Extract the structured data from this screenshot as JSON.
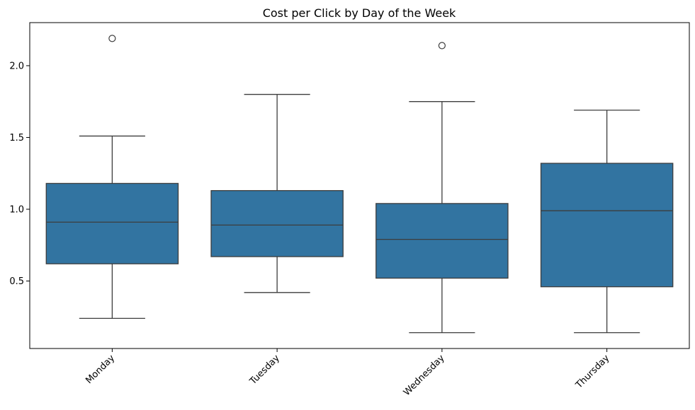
{
  "chart_data": {
    "type": "box",
    "title": "Cost per Click by Day of the Week",
    "xlabel": "",
    "ylabel": "",
    "ylim": [
      0.03,
      2.3
    ],
    "yticks": [
      0.5,
      1.0,
      1.5,
      2.0
    ],
    "ytick_labels": [
      "0.5",
      "1.0",
      "1.5",
      "2.0"
    ],
    "categories": [
      "Monday",
      "Tuesday",
      "Wednesday",
      "Thursday"
    ],
    "boxes": [
      {
        "category": "Monday",
        "whisker_low": 0.24,
        "q1": 0.62,
        "median": 0.91,
        "q3": 1.18,
        "whisker_high": 1.51,
        "outliers": [
          2.19
        ]
      },
      {
        "category": "Tuesday",
        "whisker_low": 0.42,
        "q1": 0.67,
        "median": 0.89,
        "q3": 1.13,
        "whisker_high": 1.8,
        "outliers": []
      },
      {
        "category": "Wednesday",
        "whisker_low": 0.14,
        "q1": 0.52,
        "median": 0.79,
        "q3": 1.04,
        "whisker_high": 1.75,
        "outliers": [
          2.14
        ]
      },
      {
        "category": "Thursday",
        "whisker_low": 0.14,
        "q1": 0.46,
        "median": 0.99,
        "q3": 1.32,
        "whisker_high": 1.69,
        "outliers": []
      }
    ],
    "box_color": "#3274a1",
    "line_color": "#3d3d3d",
    "grid": false,
    "xtick_rotation": 45
  }
}
